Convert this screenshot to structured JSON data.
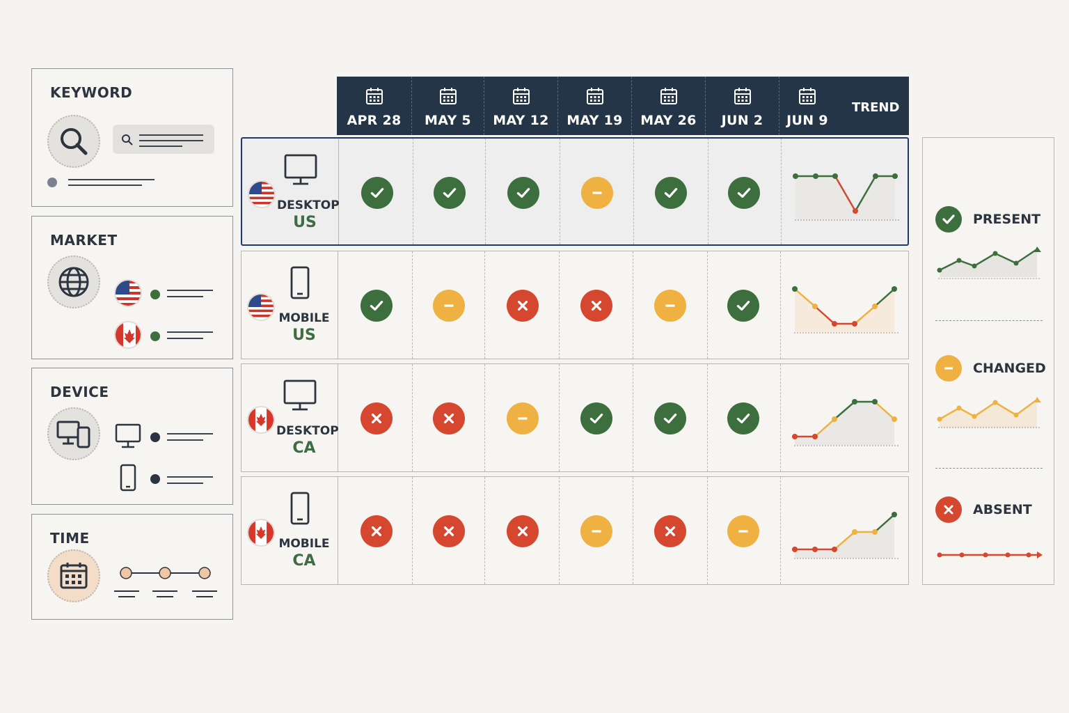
{
  "filters": {
    "keyword": {
      "title": "KEYWORD"
    },
    "market": {
      "title": "MARKET"
    },
    "device": {
      "title": "DEVICE"
    },
    "time": {
      "title": "TIME"
    }
  },
  "header": {
    "dates": [
      "APR 28",
      "MAY 5",
      "MAY 12",
      "MAY 19",
      "MAY 26",
      "JUN 2",
      "JUN 9"
    ],
    "trend_label": "TREND"
  },
  "rows": [
    {
      "device": "DESKTOP",
      "market": "US",
      "flag": "us-flag",
      "device_icon": "desktop-icon",
      "selected": true,
      "statuses": [
        "present",
        "present",
        "present",
        "changed",
        "present",
        "present"
      ],
      "trend": [
        "present",
        "present",
        "present",
        "absent",
        "present",
        "present"
      ]
    },
    {
      "device": "MOBILE",
      "market": "US",
      "flag": "us-flag",
      "device_icon": "mobile-icon",
      "selected": false,
      "statuses": [
        "present",
        "changed",
        "absent",
        "absent",
        "changed",
        "present"
      ],
      "trend": [
        "present",
        "changed",
        "absent",
        "absent",
        "changed",
        "present"
      ]
    },
    {
      "device": "DESKTOP",
      "market": "CA",
      "flag": "ca-flag",
      "device_icon": "desktop-icon",
      "selected": false,
      "statuses": [
        "absent",
        "absent",
        "changed",
        "present",
        "present",
        "present"
      ],
      "trend": [
        "absent",
        "absent",
        "changed",
        "present",
        "present",
        "changed"
      ]
    },
    {
      "device": "MOBILE",
      "market": "CA",
      "flag": "ca-flag",
      "device_icon": "mobile-icon",
      "selected": false,
      "statuses": [
        "absent",
        "absent",
        "absent",
        "changed",
        "absent",
        "changed"
      ],
      "trend": [
        "absent",
        "absent",
        "absent",
        "changed",
        "changed",
        "present"
      ]
    }
  ],
  "legend": {
    "present": "PRESENT",
    "changed": "CHANGED",
    "absent": "ABSENT"
  },
  "colors": {
    "present": "#3d6e3e",
    "changed": "#eeb142",
    "absent": "#d5472f",
    "header_bg": "#243548",
    "selection": "#1e3a6a"
  }
}
